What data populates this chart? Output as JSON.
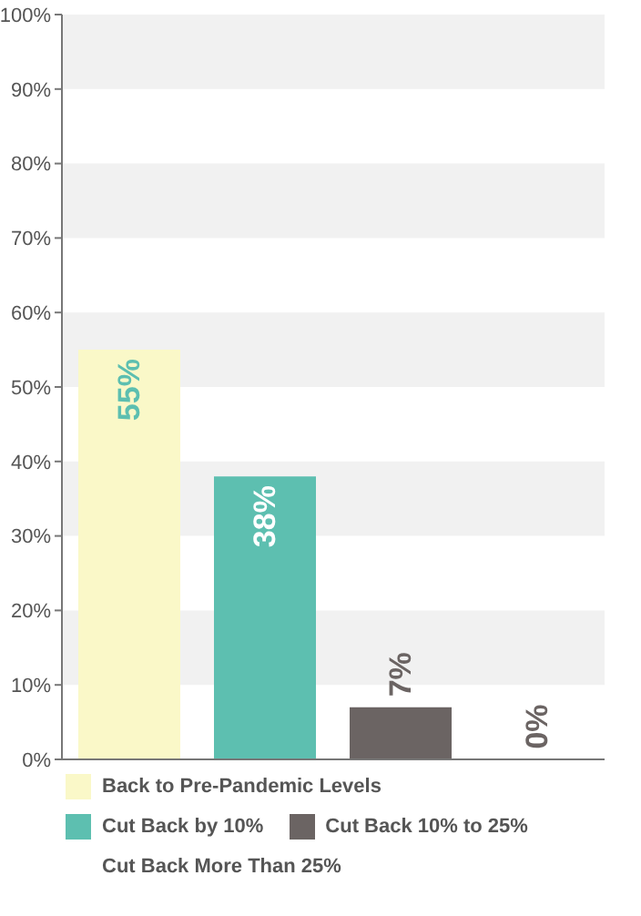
{
  "chart_data": {
    "type": "bar",
    "categories": [
      null,
      null,
      null,
      null
    ],
    "series": [
      {
        "name": "Back to Pre-Pandemic Levels",
        "color": "#faf8c8",
        "values": [
          55,
          null,
          null,
          null
        ],
        "value_labels": [
          "55%",
          null,
          null,
          null
        ]
      },
      {
        "name": "Cut Back by 10%",
        "color": "#5dbfb0",
        "values": [
          null,
          38,
          null,
          null
        ],
        "value_labels": [
          null,
          "38%",
          null,
          null
        ]
      },
      {
        "name": "Cut Back 10% to 25%",
        "color": "#6b6463",
        "values": [
          null,
          null,
          7,
          null
        ],
        "value_labels": [
          null,
          null,
          "7%",
          null
        ]
      },
      {
        "name": "Cut Back More Than 25%",
        "values": [
          null,
          null,
          null,
          0
        ],
        "value_labels": [
          null,
          null,
          null,
          "0%"
        ]
      }
    ],
    "stacked": true,
    "ylim": [
      0,
      100
    ],
    "yticks": [
      {
        "value": 0,
        "label": "0%"
      },
      {
        "value": 10,
        "label": "10%"
      },
      {
        "value": 20,
        "label": "20%"
      },
      {
        "value": 30,
        "label": "30%"
      },
      {
        "value": 40,
        "label": "40%"
      },
      {
        "value": 50,
        "label": "50%"
      },
      {
        "value": 60,
        "label": "60%"
      },
      {
        "value": 70,
        "label": "70%"
      },
      {
        "value": 80,
        "label": "80%"
      },
      {
        "value": 90,
        "label": "90%"
      },
      {
        "value": 100,
        "label": "100%"
      }
    ],
    "bands": [
      {
        "axis": "y",
        "from": 10,
        "to": 20,
        "color": "#f1f1f1"
      },
      {
        "axis": "y",
        "from": 30,
        "to": 40,
        "color": "#f1f1f1"
      },
      {
        "axis": "y",
        "from": 50,
        "to": 60,
        "color": "#f1f1f1"
      },
      {
        "axis": "y",
        "from": 70,
        "to": 80,
        "color": "#f1f1f1"
      },
      {
        "axis": "y",
        "from": 90,
        "to": 100,
        "color": "#f1f1f1"
      }
    ],
    "legend": "bottom",
    "tick_labels": "y"
  }
}
